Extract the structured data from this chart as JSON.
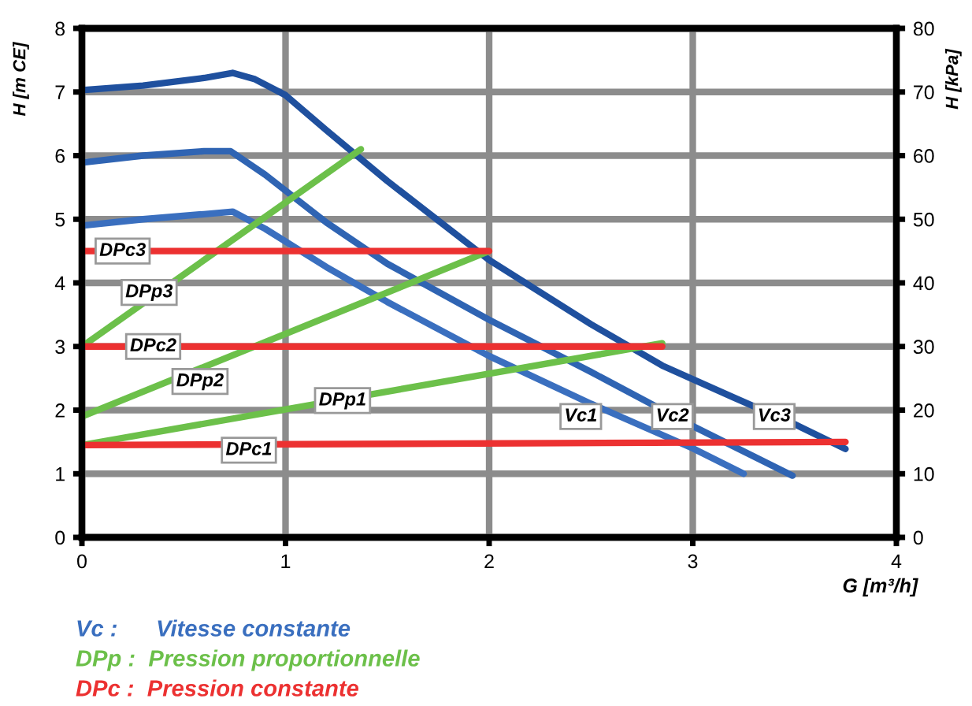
{
  "chart_data": {
    "type": "line",
    "xlabel": "G [m³/h]",
    "ylabel": "H [m CE]",
    "y2label": "H [kPa]",
    "xlim": [
      0,
      4
    ],
    "xticks": [
      0,
      1,
      2,
      3,
      4
    ],
    "ylim": [
      0,
      8
    ],
    "yticks": [
      0,
      1,
      2,
      3,
      4,
      5,
      6,
      7,
      8
    ],
    "y2lim": [
      0,
      80
    ],
    "y2ticks": [
      0,
      10,
      20,
      30,
      40,
      50,
      60,
      70,
      80
    ],
    "grid": true,
    "marker": "none",
    "line_style": "solid",
    "series": [
      {
        "color": "#3a6fbf",
        "x": [
          0,
          0.3,
          0.6,
          0.74,
          0.9,
          1.2,
          1.5,
          2.0,
          2.5,
          3.0,
          3.25
        ],
        "values": [
          4.9,
          5.0,
          5.08,
          5.12,
          4.85,
          4.25,
          3.7,
          2.85,
          2.1,
          1.4,
          1.0
        ]
      },
      {
        "color": "#2f64b3",
        "x": [
          0,
          0.3,
          0.6,
          0.73,
          0.9,
          1.2,
          1.5,
          2.0,
          2.5,
          3.0,
          3.49
        ],
        "values": [
          5.89,
          6.0,
          6.07,
          6.07,
          5.7,
          4.95,
          4.3,
          3.42,
          2.6,
          1.75,
          0.97
        ]
      },
      {
        "color": "#1f509e",
        "x": [
          0,
          0.3,
          0.6,
          0.74,
          0.85,
          1.0,
          1.2,
          1.5,
          2.0,
          2.5,
          2.85,
          3.2,
          3.5,
          3.75
        ],
        "values": [
          7.03,
          7.1,
          7.22,
          7.3,
          7.2,
          6.95,
          6.4,
          5.6,
          4.36,
          3.35,
          2.7,
          2.2,
          1.78,
          1.39
        ]
      },
      {
        "color": "#6cc04a",
        "x": [
          0,
          2.85
        ],
        "values": [
          1.45,
          3.05
        ]
      },
      {
        "color": "#6cc04a",
        "x": [
          0,
          2.0
        ],
        "values": [
          1.9,
          4.5
        ]
      },
      {
        "color": "#6cc04a",
        "x": [
          0,
          1.37
        ],
        "values": [
          3.0,
          6.1
        ]
      },
      {
        "color": "#ec3131",
        "x": [
          0,
          3.75
        ],
        "values": [
          1.45,
          1.5
        ]
      },
      {
        "color": "#ec3131",
        "x": [
          0,
          2.85
        ],
        "values": [
          3.0,
          3.0
        ]
      },
      {
        "color": "#ec3131",
        "x": [
          0,
          2.0
        ],
        "values": [
          4.5,
          4.5
        ]
      }
    ],
    "annotations": [
      {
        "text": "Vc1",
        "x": 2.45,
        "y": 1.9
      },
      {
        "text": "Vc2",
        "x": 2.9,
        "y": 1.9
      },
      {
        "text": "Vc3",
        "x": 3.4,
        "y": 1.9
      },
      {
        "text": "DPp1",
        "x": 1.28,
        "y": 2.15
      },
      {
        "text": "DPp2",
        "x": 0.58,
        "y": 2.45
      },
      {
        "text": "DPp3",
        "x": 0.33,
        "y": 3.85
      },
      {
        "text": "DPc1",
        "x": 0.82,
        "y": 1.37
      },
      {
        "text": "DPc2",
        "x": 0.35,
        "y": 3.0
      },
      {
        "text": "DPc3",
        "x": 0.2,
        "y": 4.5
      },
      "Vc :      Vitesse constante",
      "DPp :  Pression proportionnelle",
      "DPc :  Pression constante"
    ]
  }
}
